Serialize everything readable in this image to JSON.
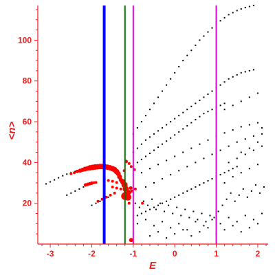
{
  "chart_data": {
    "type": "scatter",
    "xlabel": "E",
    "ylabel": "<n>",
    "xlim": [
      -3.3,
      2.25
    ],
    "ylim": [
      0,
      117
    ],
    "xticks": [
      -3,
      -2,
      -1,
      0,
      1,
      2
    ],
    "yticks": [
      20,
      40,
      60,
      80,
      100
    ],
    "vlines": [
      {
        "x": -1.7,
        "color": "#0000ff",
        "style": "thick"
      },
      {
        "x": -1.2,
        "color": "#007700",
        "style": "medium"
      },
      {
        "x": -1.0,
        "color": "#dd00dd",
        "style": "medium"
      },
      {
        "x": 1.0,
        "color": "#dd00dd",
        "style": "medium"
      }
    ],
    "series": [
      {
        "color": "#000000",
        "points": [
          [
            -3.1,
            29.5
          ],
          [
            -3.0,
            30.5
          ],
          [
            -2.9,
            31.5
          ],
          [
            -2.8,
            32.5
          ],
          [
            -2.7,
            33.5
          ],
          [
            -2.6,
            34.3
          ],
          [
            -2.5,
            35
          ],
          [
            -2.4,
            35.6
          ],
          [
            -2.3,
            36
          ],
          [
            -2.2,
            36.4
          ],
          [
            -2.6,
            24
          ],
          [
            -2.5,
            25
          ],
          [
            -2.4,
            26
          ],
          [
            -2.3,
            27
          ],
          [
            -2.2,
            28
          ],
          [
            -2.1,
            28.8
          ],
          [
            -2.0,
            19
          ],
          [
            -1.9,
            20
          ],
          [
            -1.8,
            21
          ],
          [
            -1.7,
            22
          ],
          [
            -1.6,
            23
          ],
          [
            -1.0,
            54
          ],
          [
            -0.9,
            57
          ],
          [
            -0.8,
            60
          ],
          [
            -0.7,
            63
          ],
          [
            -0.6,
            66
          ],
          [
            -0.5,
            69
          ],
          [
            -0.4,
            72
          ],
          [
            -0.3,
            75
          ],
          [
            -0.2,
            78
          ],
          [
            -0.1,
            81
          ],
          [
            0.0,
            84
          ],
          [
            0.1,
            87
          ],
          [
            0.2,
            90
          ],
          [
            0.3,
            92.5
          ],
          [
            0.4,
            95
          ],
          [
            0.5,
            97.5
          ],
          [
            0.6,
            100
          ],
          [
            0.7,
            102
          ],
          [
            0.8,
            104
          ],
          [
            0.9,
            106
          ],
          [
            1.0,
            108
          ],
          [
            1.1,
            109.5
          ],
          [
            1.2,
            111
          ],
          [
            1.3,
            112.5
          ],
          [
            1.4,
            113.5
          ],
          [
            1.5,
            114.5
          ],
          [
            1.6,
            115.3
          ],
          [
            1.7,
            116
          ],
          [
            1.8,
            116.5
          ],
          [
            1.9,
            117
          ],
          [
            -1.0,
            45
          ],
          [
            -0.9,
            47
          ],
          [
            -0.8,
            49
          ],
          [
            -0.7,
            51
          ],
          [
            -0.6,
            52.5
          ],
          [
            -0.5,
            54
          ],
          [
            -0.4,
            55.5
          ],
          [
            -0.3,
            57
          ],
          [
            -0.2,
            58.5
          ],
          [
            -0.1,
            60
          ],
          [
            0.0,
            61.5
          ],
          [
            0.1,
            63
          ],
          [
            0.2,
            64.5
          ],
          [
            0.3,
            66
          ],
          [
            0.4,
            67.5
          ],
          [
            0.5,
            69
          ],
          [
            0.6,
            70.5
          ],
          [
            0.7,
            72
          ],
          [
            0.8,
            73.5
          ],
          [
            0.9,
            75
          ],
          [
            1.0,
            76.5
          ],
          [
            1.1,
            78
          ],
          [
            1.2,
            79.5
          ],
          [
            1.3,
            81
          ],
          [
            1.4,
            82
          ],
          [
            1.5,
            83
          ],
          [
            1.6,
            84
          ],
          [
            1.7,
            84.5
          ],
          [
            1.8,
            85
          ],
          [
            1.9,
            85.5
          ],
          [
            -0.9,
            40
          ],
          [
            -0.8,
            41.5
          ],
          [
            -0.7,
            43
          ],
          [
            -0.6,
            44.5
          ],
          [
            -0.5,
            46
          ],
          [
            -0.4,
            47.5
          ],
          [
            -0.3,
            49
          ],
          [
            -0.2,
            50.5
          ],
          [
            -0.1,
            52
          ],
          [
            0.0,
            53.5
          ],
          [
            0.1,
            55
          ],
          [
            0.2,
            56.5
          ],
          [
            0.3,
            58
          ],
          [
            0.4,
            59.5
          ],
          [
            0.5,
            61
          ],
          [
            0.6,
            62.5
          ],
          [
            0.7,
            64
          ],
          [
            0.8,
            65
          ],
          [
            0.9,
            66
          ],
          [
            1.0,
            67
          ],
          [
            1.1,
            68
          ],
          [
            1.2,
            69
          ],
          [
            -0.8,
            35
          ],
          [
            -0.6,
            37
          ],
          [
            -0.4,
            39
          ],
          [
            -0.2,
            41
          ],
          [
            0.0,
            43
          ],
          [
            0.2,
            45
          ],
          [
            0.4,
            47
          ],
          [
            0.6,
            49
          ],
          [
            0.8,
            51
          ],
          [
            1.0,
            53
          ],
          [
            1.2,
            54.5
          ],
          [
            1.4,
            56
          ],
          [
            1.6,
            57.5
          ],
          [
            1.8,
            58.5
          ],
          [
            2.0,
            59.5
          ],
          [
            -0.7,
            28
          ],
          [
            -0.5,
            30
          ],
          [
            -0.3,
            32
          ],
          [
            -0.1,
            34
          ],
          [
            0.1,
            36
          ],
          [
            0.3,
            38
          ],
          [
            0.5,
            40
          ],
          [
            0.7,
            42
          ],
          [
            0.9,
            44
          ],
          [
            1.1,
            46
          ],
          [
            1.3,
            48
          ],
          [
            1.5,
            50
          ],
          [
            1.7,
            51.5
          ],
          [
            1.9,
            53
          ],
          [
            2.1,
            54
          ],
          [
            -0.9,
            14
          ],
          [
            -0.8,
            15
          ],
          [
            -0.7,
            16
          ],
          [
            -0.6,
            17
          ],
          [
            -0.5,
            18
          ],
          [
            -0.4,
            19
          ],
          [
            -0.3,
            20
          ],
          [
            -0.2,
            21
          ],
          [
            -0.1,
            22
          ],
          [
            0.0,
            23
          ],
          [
            0.1,
            24
          ],
          [
            0.2,
            25
          ],
          [
            0.3,
            26
          ],
          [
            0.4,
            27
          ],
          [
            0.5,
            28
          ],
          [
            0.6,
            29
          ],
          [
            0.7,
            30
          ],
          [
            0.8,
            31
          ],
          [
            0.9,
            32
          ],
          [
            1.0,
            33
          ],
          [
            1.1,
            34
          ],
          [
            1.2,
            35
          ],
          [
            1.3,
            36
          ],
          [
            1.4,
            37
          ],
          [
            1.5,
            38
          ],
          [
            -0.95,
            20
          ],
          [
            -0.85,
            18
          ],
          [
            -0.75,
            21
          ],
          [
            -0.65,
            19
          ],
          [
            -0.55,
            22
          ],
          [
            -0.45,
            17
          ],
          [
            -0.35,
            20
          ],
          [
            -0.25,
            16
          ],
          [
            -0.15,
            19
          ],
          [
            -0.05,
            15
          ],
          [
            0.05,
            18
          ],
          [
            0.15,
            14
          ],
          [
            0.25,
            17
          ],
          [
            0.35,
            13
          ],
          [
            0.45,
            16
          ],
          [
            0.55,
            12
          ],
          [
            0.65,
            15
          ],
          [
            0.75,
            11
          ],
          [
            0.85,
            14
          ],
          [
            0.95,
            13
          ],
          [
            1.05,
            16
          ],
          [
            1.15,
            19
          ],
          [
            1.25,
            22
          ],
          [
            1.35,
            25
          ],
          [
            1.45,
            21
          ],
          [
            1.55,
            24
          ],
          [
            1.65,
            27
          ],
          [
            1.75,
            23
          ],
          [
            1.85,
            26
          ],
          [
            1.95,
            29
          ],
          [
            2.05,
            25
          ],
          [
            2.15,
            28
          ],
          [
            -0.9,
            10
          ],
          [
            -0.7,
            12
          ],
          [
            -0.5,
            9
          ],
          [
            -0.3,
            11
          ],
          [
            -0.1,
            8
          ],
          [
            0.1,
            10
          ],
          [
            0.3,
            7
          ],
          [
            0.5,
            11
          ],
          [
            0.7,
            9
          ],
          [
            0.9,
            12
          ],
          [
            1.1,
            10
          ],
          [
            1.3,
            13
          ],
          [
            1.5,
            11
          ],
          [
            1.7,
            14
          ],
          [
            1.9,
            12
          ],
          [
            2.1,
            15
          ],
          [
            -0.6,
            4
          ],
          [
            -0.4,
            6
          ],
          [
            -0.2,
            3
          ],
          [
            0.0,
            5
          ],
          [
            0.2,
            7
          ],
          [
            0.4,
            4
          ],
          [
            0.6,
            6
          ],
          [
            0.8,
            8
          ],
          [
            1.0,
            5
          ],
          [
            1.2,
            7
          ],
          [
            1.4,
            9
          ],
          [
            1.6,
            6
          ],
          [
            1.8,
            8
          ],
          [
            2.0,
            10
          ],
          [
            1.2,
            30
          ],
          [
            1.4,
            33
          ],
          [
            1.6,
            35
          ],
          [
            1.8,
            37
          ],
          [
            2.0,
            39
          ],
          [
            1.3,
            40
          ],
          [
            1.5,
            42
          ],
          [
            1.7,
            44
          ],
          [
            1.9,
            46
          ],
          [
            2.1,
            48
          ],
          [
            1.0,
            64
          ],
          [
            1.2,
            66
          ],
          [
            1.4,
            68
          ],
          [
            1.6,
            70
          ],
          [
            1.8,
            72
          ],
          [
            2.0,
            74
          ],
          [
            1.6,
            45
          ],
          [
            1.8,
            47
          ],
          [
            2.0,
            50
          ],
          [
            2.1,
            57
          ]
        ]
      },
      {
        "color": "#ff0000",
        "points": [
          {
            "x": -2.5,
            "y": 34.5,
            "s": 2
          },
          {
            "x": -2.42,
            "y": 35,
            "s": 2
          },
          {
            "x": -2.35,
            "y": 35.6,
            "s": 2.5
          },
          {
            "x": -2.28,
            "y": 36,
            "s": 3
          },
          {
            "x": -2.22,
            "y": 36.4,
            "s": 3
          },
          {
            "x": -2.16,
            "y": 36.8,
            "s": 3.5
          },
          {
            "x": -2.1,
            "y": 37.1,
            "s": 3.5
          },
          {
            "x": -2.04,
            "y": 37.4,
            "s": 4
          },
          {
            "x": -1.98,
            "y": 37.6,
            "s": 4
          },
          {
            "x": -1.92,
            "y": 37.8,
            "s": 4
          },
          {
            "x": -1.86,
            "y": 37.9,
            "s": 4
          },
          {
            "x": -1.8,
            "y": 38,
            "s": 4
          },
          {
            "x": -1.74,
            "y": 38,
            "s": 4
          },
          {
            "x": -1.68,
            "y": 37.9,
            "s": 4
          },
          {
            "x": -1.62,
            "y": 37.7,
            "s": 4
          },
          {
            "x": -1.56,
            "y": 37.4,
            "s": 4
          },
          {
            "x": -1.5,
            "y": 37,
            "s": 4
          },
          {
            "x": -1.45,
            "y": 36.5,
            "s": 4
          },
          {
            "x": -1.4,
            "y": 35.5,
            "s": 4
          },
          {
            "x": -1.36,
            "y": 34.5,
            "s": 3.5
          },
          {
            "x": -1.33,
            "y": 33,
            "s": 3.5
          },
          {
            "x": -1.3,
            "y": 31.5,
            "s": 3
          },
          {
            "x": -2.15,
            "y": 29,
            "s": 2.5
          },
          {
            "x": -2.1,
            "y": 29.3,
            "s": 2.5
          },
          {
            "x": -2.05,
            "y": 29.6,
            "s": 2.5
          },
          {
            "x": -2.0,
            "y": 29.9,
            "s": 2.5
          },
          {
            "x": -1.95,
            "y": 30.1,
            "s": 2
          },
          {
            "x": -1.9,
            "y": 30.2,
            "s": 2
          },
          {
            "x": -1.7,
            "y": 31.5,
            "s": 2
          },
          {
            "x": -1.6,
            "y": 31.2,
            "s": 2
          },
          {
            "x": -1.5,
            "y": 30.8,
            "s": 2
          },
          {
            "x": -1.4,
            "y": 30.2,
            "s": 2
          },
          {
            "x": -1.85,
            "y": 21,
            "s": 2
          },
          {
            "x": -1.75,
            "y": 22,
            "s": 2
          },
          {
            "x": -1.65,
            "y": 23,
            "s": 2
          },
          {
            "x": -1.55,
            "y": 24,
            "s": 2
          },
          {
            "x": -1.45,
            "y": 25,
            "s": 2
          },
          {
            "x": -1.5,
            "y": 28,
            "s": 2
          },
          {
            "x": -1.4,
            "y": 27.5,
            "s": 2
          },
          {
            "x": -1.3,
            "y": 27,
            "s": 2
          },
          {
            "x": -1.17,
            "y": 40.5,
            "s": 2.5
          },
          {
            "x": -1.1,
            "y": 39.5,
            "s": 2
          },
          {
            "x": -1.22,
            "y": 36,
            "s": 2
          },
          {
            "x": -1.05,
            "y": 38,
            "s": 2
          },
          {
            "x": -0.97,
            "y": 36.5,
            "s": 2
          },
          {
            "x": -1.25,
            "y": 30.5,
            "s": 4
          },
          {
            "x": -1.21,
            "y": 29,
            "s": 4.5
          },
          {
            "x": -1.18,
            "y": 27,
            "s": 4.5
          },
          {
            "x": -1.15,
            "y": 25,
            "s": 5
          },
          {
            "x": -1.2,
            "y": 23.5,
            "s": 5.5
          },
          {
            "x": -1.13,
            "y": 23,
            "s": 5
          },
          {
            "x": -1.09,
            "y": 25.5,
            "s": 3
          },
          {
            "x": -1.06,
            "y": 27.5,
            "s": 2.5
          },
          {
            "x": -1.03,
            "y": 26,
            "s": 2
          },
          {
            "x": -0.95,
            "y": 27,
            "s": 2
          },
          {
            "x": -1.1,
            "y": 20,
            "s": 2
          },
          {
            "x": -0.78,
            "y": 20,
            "s": 2
          },
          {
            "x": -1.05,
            "y": 2,
            "s": 3
          }
        ]
      }
    ]
  }
}
